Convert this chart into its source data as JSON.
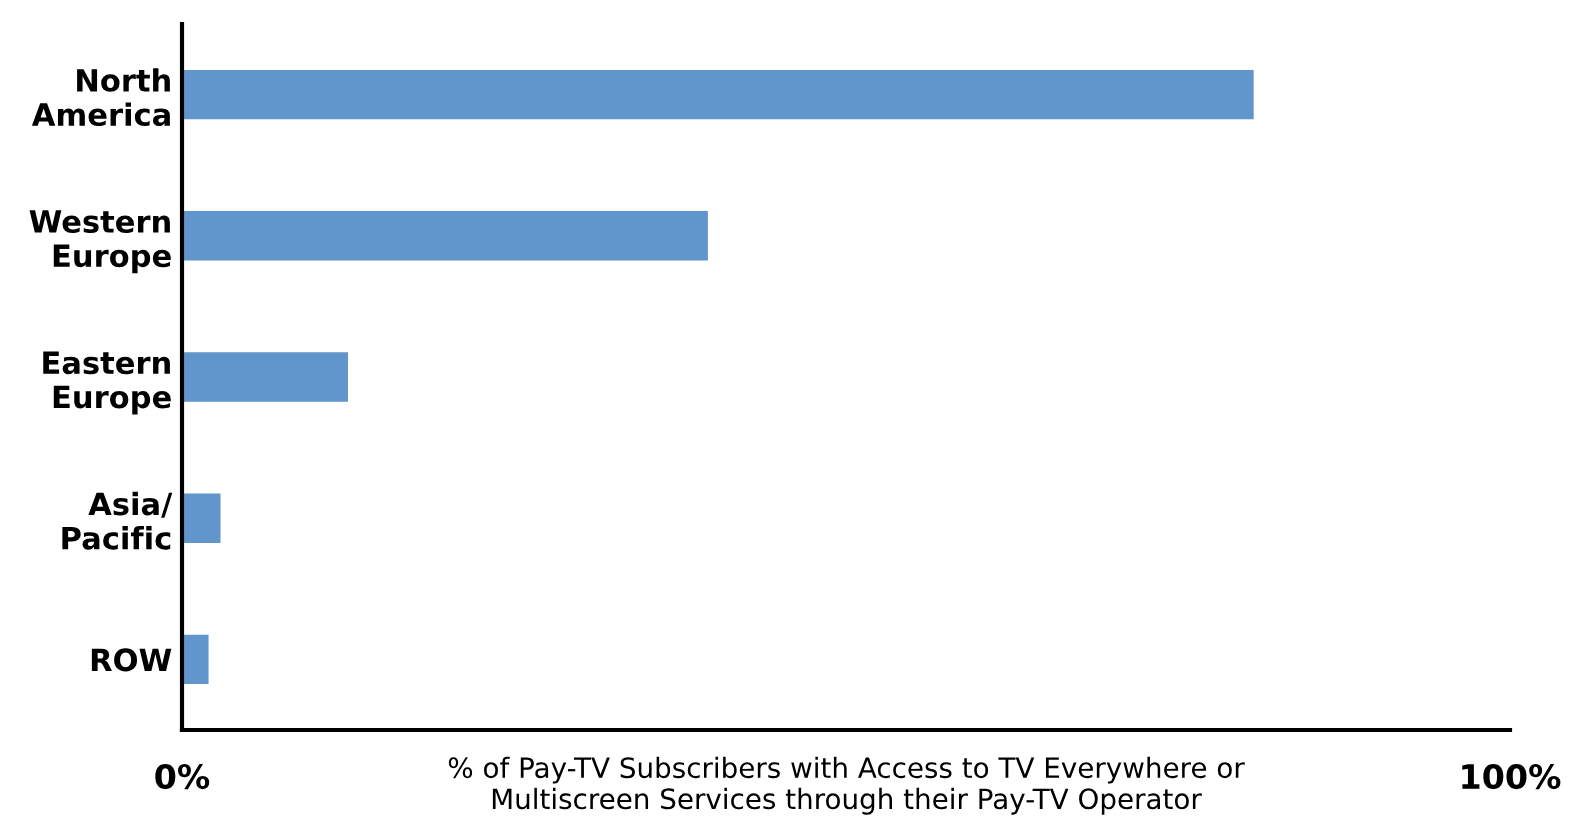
{
  "chart_data": {
    "type": "bar",
    "orientation": "horizontal",
    "categories": [
      "North\nAmerica",
      "Western\nEurope",
      "Eastern\nEurope",
      "Asia/\nPacific",
      "ROW"
    ],
    "values": [
      80.7,
      39.6,
      12.5,
      2.9,
      2.0
    ],
    "color": "#6096cc",
    "xlim": [
      0,
      100
    ],
    "xticks": [
      {
        "value": 0,
        "label": "0%"
      },
      {
        "value": 100,
        "label": "100%"
      }
    ],
    "xlabel": "% of Pay-TV Subscribers with Access to TV Everywhere or\nMultiscreen Services through their Pay-TV Operator",
    "grid": false,
    "legend": false
  }
}
